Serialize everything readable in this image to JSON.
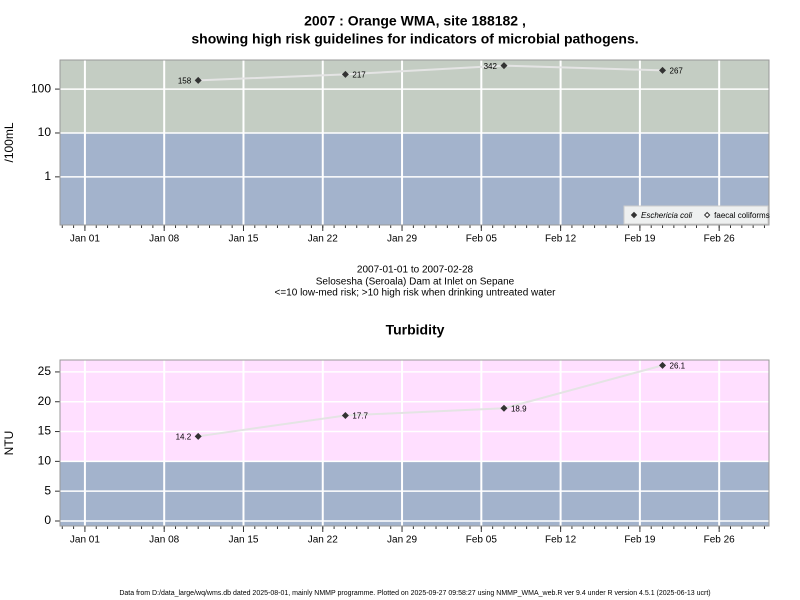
{
  "chart_data": [
    {
      "type": "line",
      "title": "2007 : Orange WMA, site 188182 ,",
      "subtitle": "showing high risk guidelines for indicators of microbial pathogens.",
      "ylabel": "/100mL",
      "log_scale": true,
      "x": [
        10,
        23,
        37,
        51
      ],
      "xlim": [
        -2.2,
        60.4
      ],
      "xticks": [
        {
          "value": 0,
          "label": "Jan 01"
        },
        {
          "value": 7,
          "label": "Jan 08"
        },
        {
          "value": 14,
          "label": "Jan 15"
        },
        {
          "value": 21,
          "label": "Jan 22"
        },
        {
          "value": 28,
          "label": "Jan 29"
        },
        {
          "value": 35,
          "label": "Feb 05"
        },
        {
          "value": 42,
          "label": "Feb 12"
        },
        {
          "value": 49,
          "label": "Feb 19"
        },
        {
          "value": 56,
          "label": "Feb 26"
        }
      ],
      "ylim": [
        0.08,
        460
      ],
      "yticks": [
        1,
        10,
        100
      ],
      "grid": true,
      "threshold": 10,
      "threshold_colors": {
        "below": "#a3b3cc",
        "above": "#c4cdc3"
      },
      "line_color": "#e4e4e4",
      "series": [
        {
          "name": "Eschericia coli",
          "color": "#333333",
          "values": [
            158,
            217,
            342,
            267
          ]
        },
        {
          "name": "faecal coliforms",
          "color": "#333333",
          "values": [
            null,
            null,
            null,
            null
          ]
        }
      ],
      "legend": "bottom-right",
      "notes": [
        "2007-01-01 to 2007-02-28",
        "Selosesha (Seroala) Dam at Inlet on Sepane",
        "<=10 low-med risk; >10 high risk when drinking untreated water"
      ]
    },
    {
      "type": "line",
      "title": "Turbidity",
      "ylabel": "NTU",
      "log_scale": false,
      "x": [
        10,
        23,
        37,
        51
      ],
      "xlim": [
        -2.2,
        60.4
      ],
      "xticks": [
        {
          "value": 0,
          "label": "Jan 01"
        },
        {
          "value": 7,
          "label": "Jan 08"
        },
        {
          "value": 14,
          "label": "Jan 15"
        },
        {
          "value": 21,
          "label": "Jan 22"
        },
        {
          "value": 28,
          "label": "Jan 29"
        },
        {
          "value": 35,
          "label": "Feb 05"
        },
        {
          "value": 42,
          "label": "Feb 12"
        },
        {
          "value": 49,
          "label": "Feb 19"
        },
        {
          "value": 56,
          "label": "Feb 26"
        }
      ],
      "ylim": [
        -0.84,
        27
      ],
      "yticks": [
        0,
        5,
        10,
        15,
        20,
        25
      ],
      "grid": true,
      "threshold": 10,
      "threshold_colors": {
        "below": "#a3b3cc",
        "above": "#ffdfff"
      },
      "line_color": "#e4e4e4",
      "series": [
        {
          "name": "Turbidity",
          "color": "#333333",
          "values": [
            14.2,
            17.7,
            18.9,
            26.1
          ]
        }
      ]
    }
  ],
  "footer": "Data from D:/data_large/wq/wms.db dated 2025-08-01, mainly NMMP programme. Plotted on 2025-09-27 09:58:27 using NMMP_WMA_web.R ver 9.4 under R version 4.5.1 (2025-06-13 ucrt)"
}
